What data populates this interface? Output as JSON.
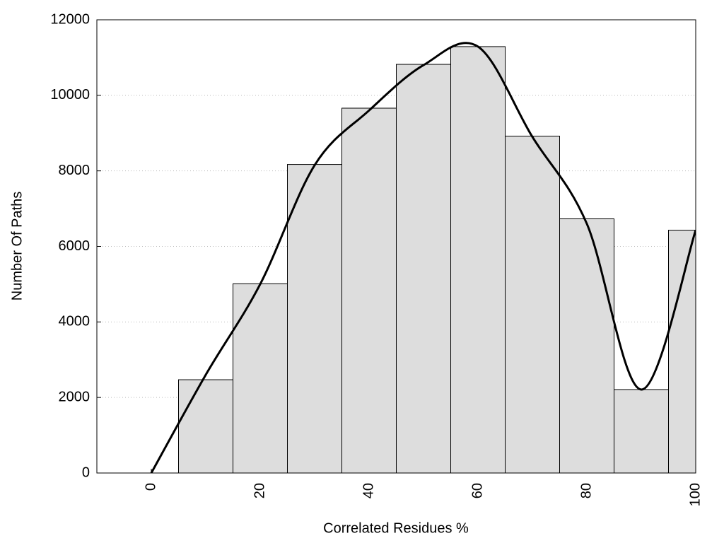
{
  "chart_data": {
    "type": "histogram",
    "x_label": "Correlated Residues %",
    "y_label": "Number Of Paths",
    "bins": [
      5,
      15,
      25,
      35,
      45,
      55,
      65,
      75,
      85,
      95,
      105
    ],
    "values": [
      2470,
      5010,
      8170,
      9660,
      10820,
      11290,
      8920,
      6730,
      2210,
      6430
    ],
    "color": "#dddddd",
    "curve": {
      "x": [
        0,
        10,
        20,
        30,
        40,
        50,
        60,
        70,
        80,
        90,
        100
      ],
      "values": [
        0,
        2600,
        5000,
        8150,
        9600,
        10800,
        11290,
        8900,
        6600,
        2210,
        6430
      ],
      "color": "#000000"
    },
    "xlim": [
      -10,
      100
    ],
    "ylim": [
      0,
      12000
    ],
    "xticks": [
      0,
      20,
      40,
      60,
      80,
      100
    ],
    "yticks": [
      0,
      2000,
      4000,
      6000,
      8000,
      10000,
      12000
    ],
    "grid": true
  }
}
